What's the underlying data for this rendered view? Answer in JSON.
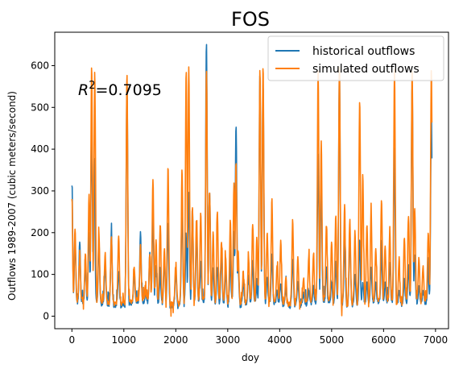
{
  "chart_data": {
    "type": "line",
    "title": "FOS",
    "xlabel": "doy",
    "ylabel": "Outflows 1989-2007 (cubic meters/second)",
    "xlim": [
      -330,
      7250
    ],
    "ylim": [
      -30,
      680
    ],
    "xticks": [
      0,
      1000,
      2000,
      3000,
      4000,
      5000,
      6000,
      7000
    ],
    "yticks": [
      0,
      100,
      200,
      300,
      400,
      500,
      600
    ],
    "grid": false,
    "legend_position": "top-right",
    "annotation": {
      "text": "=0.7095",
      "symbol": "R",
      "superscript": "2"
    },
    "series": [
      {
        "name": "historical outflows",
        "color": "#1f77b4",
        "baseline": 30,
        "x_end": 6930,
        "spikes": [
          [
            0,
            310
          ],
          [
            60,
            190
          ],
          [
            150,
            180
          ],
          [
            260,
            120
          ],
          [
            330,
            200
          ],
          [
            380,
            470
          ],
          [
            430,
            380
          ],
          [
            520,
            180
          ],
          [
            640,
            130
          ],
          [
            760,
            200
          ],
          [
            900,
            110
          ],
          [
            1060,
            560
          ],
          [
            1200,
            100
          ],
          [
            1320,
            200
          ],
          [
            1420,
            60
          ],
          [
            1500,
            150
          ],
          [
            1560,
            250
          ],
          [
            1620,
            120
          ],
          [
            1700,
            100
          ],
          [
            1780,
            140
          ],
          [
            1850,
            220
          ],
          [
            2000,
            110
          ],
          [
            2120,
            270
          ],
          [
            2200,
            180
          ],
          [
            2250,
            300
          ],
          [
            2320,
            260
          ],
          [
            2400,
            200
          ],
          [
            2480,
            130
          ],
          [
            2590,
            655
          ],
          [
            2650,
            300
          ],
          [
            2720,
            120
          ],
          [
            2800,
            120
          ],
          [
            2880,
            150
          ],
          [
            2960,
            110
          ],
          [
            3050,
            130
          ],
          [
            3120,
            200
          ],
          [
            3160,
            460
          ],
          [
            3200,
            120
          ],
          [
            3300,
            80
          ],
          [
            3400,
            100
          ],
          [
            3480,
            130
          ],
          [
            3560,
            70
          ],
          [
            3620,
            580
          ],
          [
            3680,
            560
          ],
          [
            3760,
            90
          ],
          [
            3850,
            150
          ],
          [
            3950,
            60
          ],
          [
            4020,
            80
          ],
          [
            4120,
            60
          ],
          [
            4250,
            140
          ],
          [
            4350,
            80
          ],
          [
            4460,
            55
          ],
          [
            4560,
            60
          ],
          [
            4650,
            70
          ],
          [
            4740,
            390
          ],
          [
            4800,
            330
          ],
          [
            4900,
            120
          ],
          [
            5000,
            80
          ],
          [
            5080,
            130
          ],
          [
            5150,
            590
          ],
          [
            5250,
            180
          ],
          [
            5350,
            200
          ],
          [
            5450,
            100
          ],
          [
            5540,
            180
          ],
          [
            5600,
            80
          ],
          [
            5680,
            80
          ],
          [
            5760,
            120
          ],
          [
            5850,
            80
          ],
          [
            5960,
            150
          ],
          [
            6030,
            80
          ],
          [
            6120,
            130
          ],
          [
            6210,
            400
          ],
          [
            6300,
            60
          ],
          [
            6400,
            90
          ],
          [
            6480,
            120
          ],
          [
            6550,
            560
          ],
          [
            6600,
            150
          ],
          [
            6680,
            70
          ],
          [
            6760,
            60
          ],
          [
            6860,
            110
          ],
          [
            6920,
            480
          ]
        ]
      },
      {
        "name": "simulated outflows",
        "color": "#ff7f0e",
        "baseline": 35,
        "x_end": 6930,
        "spikes": [
          [
            0,
            270
          ],
          [
            60,
            210
          ],
          [
            150,
            160
          ],
          [
            260,
            150
          ],
          [
            330,
            290
          ],
          [
            380,
            600
          ],
          [
            440,
            590
          ],
          [
            520,
            200
          ],
          [
            640,
            150
          ],
          [
            760,
            190
          ],
          [
            900,
            190
          ],
          [
            1060,
            580
          ],
          [
            1200,
            120
          ],
          [
            1320,
            170
          ],
          [
            1420,
            80
          ],
          [
            1500,
            150
          ],
          [
            1560,
            330
          ],
          [
            1620,
            180
          ],
          [
            1700,
            220
          ],
          [
            1780,
            160
          ],
          [
            1850,
            360
          ],
          [
            2000,
            130
          ],
          [
            2120,
            350
          ],
          [
            2200,
            590
          ],
          [
            2250,
            600
          ],
          [
            2320,
            260
          ],
          [
            2400,
            250
          ],
          [
            2480,
            250
          ],
          [
            2590,
            590
          ],
          [
            2650,
            300
          ],
          [
            2720,
            200
          ],
          [
            2800,
            250
          ],
          [
            2880,
            180
          ],
          [
            2960,
            140
          ],
          [
            3050,
            230
          ],
          [
            3120,
            320
          ],
          [
            3160,
            370
          ],
          [
            3200,
            160
          ],
          [
            3300,
            110
          ],
          [
            3400,
            140
          ],
          [
            3480,
            220
          ],
          [
            3560,
            190
          ],
          [
            3620,
            590
          ],
          [
            3680,
            600
          ],
          [
            3760,
            200
          ],
          [
            3850,
            280
          ],
          [
            3950,
            120
          ],
          [
            4020,
            180
          ],
          [
            4120,
            90
          ],
          [
            4250,
            230
          ],
          [
            4350,
            140
          ],
          [
            4460,
            90
          ],
          [
            4560,
            140
          ],
          [
            4650,
            150
          ],
          [
            4740,
            590
          ],
          [
            4800,
            420
          ],
          [
            4900,
            220
          ],
          [
            5000,
            180
          ],
          [
            5080,
            240
          ],
          [
            5150,
            600
          ],
          [
            5250,
            270
          ],
          [
            5350,
            230
          ],
          [
            5450,
            200
          ],
          [
            5540,
            520
          ],
          [
            5600,
            340
          ],
          [
            5680,
            220
          ],
          [
            5760,
            250
          ],
          [
            5850,
            160
          ],
          [
            5960,
            280
          ],
          [
            6030,
            170
          ],
          [
            6120,
            200
          ],
          [
            6210,
            590
          ],
          [
            6300,
            140
          ],
          [
            6400,
            190
          ],
          [
            6480,
            240
          ],
          [
            6550,
            595
          ],
          [
            6600,
            260
          ],
          [
            6680,
            140
          ],
          [
            6760,
            120
          ],
          [
            6860,
            200
          ],
          [
            6920,
            590
          ]
        ]
      }
    ]
  }
}
